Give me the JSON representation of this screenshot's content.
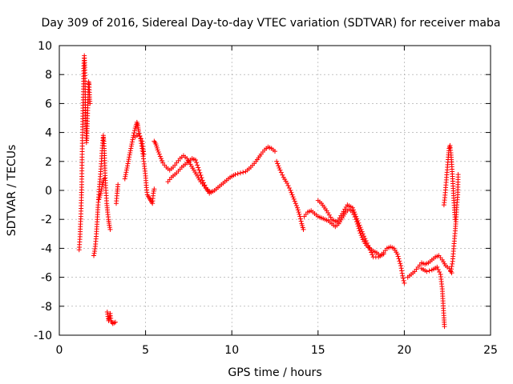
{
  "chart_data": {
    "type": "scatter",
    "title": "Day 309 of 2016, Sidereal Day-to-day VTEC variation (SDTVAR) for receiver maba",
    "xlabel": "GPS time / hours",
    "ylabel": "SDTVAR / TECUs",
    "xlim": [
      0,
      25
    ],
    "ylim": [
      -10,
      10
    ],
    "xticks": [
      0,
      5,
      10,
      15,
      20,
      25
    ],
    "xtick_labels": [
      "0",
      "5",
      "10",
      "15",
      "20",
      "25"
    ],
    "yticks": [
      -10,
      -8,
      -6,
      -4,
      -2,
      0,
      2,
      4,
      6,
      8,
      10
    ],
    "ytick_labels": [
      "-10",
      "-8",
      "-6",
      "-4",
      "-2",
      "0",
      "2",
      "4",
      "6",
      "8",
      "10"
    ],
    "grid": true,
    "marker": "+",
    "color": "#ff0000",
    "series": [
      {
        "name": "SDTVAR",
        "segments": [
          [
            [
              1.15,
              -4.1
            ],
            [
              1.2,
              -3.2
            ],
            [
              1.22,
              -2.5
            ],
            [
              1.25,
              -1.8
            ],
            [
              1.28,
              -0.5
            ],
            [
              1.3,
              0.4
            ],
            [
              1.32,
              2.3
            ],
            [
              1.35,
              4.2
            ],
            [
              1.37,
              5.5
            ],
            [
              1.4,
              7.0
            ],
            [
              1.42,
              8.6
            ],
            [
              1.45,
              9.3
            ],
            [
              1.48,
              8.5
            ],
            [
              1.5,
              6.8
            ],
            [
              1.52,
              5.2
            ],
            [
              1.55,
              4.1
            ],
            [
              1.57,
              3.3
            ],
            [
              1.6,
              3.6
            ],
            [
              1.62,
              4.6
            ],
            [
              1.65,
              5.7
            ],
            [
              1.68,
              6.8
            ],
            [
              1.7,
              7.5
            ],
            [
              1.73,
              7.3
            ],
            [
              1.75,
              6.6
            ],
            [
              1.78,
              6.0
            ]
          ],
          [
            [
              2.0,
              -4.5
            ],
            [
              2.05,
              -4.2
            ],
            [
              2.1,
              -3.7
            ],
            [
              2.15,
              -3.0
            ],
            [
              2.2,
              -2.0
            ],
            [
              2.25,
              -1.0
            ],
            [
              2.3,
              -0.1
            ],
            [
              2.35,
              0.6
            ],
            [
              2.4,
              1.3
            ],
            [
              2.45,
              2.2
            ],
            [
              2.5,
              3.1
            ],
            [
              2.55,
              3.8
            ],
            [
              2.58,
              3.4
            ],
            [
              2.62,
              2.4
            ],
            [
              2.65,
              1.2
            ],
            [
              2.7,
              0.0
            ],
            [
              2.75,
              -0.9
            ],
            [
              2.8,
              -1.5
            ],
            [
              2.85,
              -2.0
            ],
            [
              2.9,
              -2.4
            ],
            [
              2.95,
              -2.7
            ]
          ],
          [
            [
              2.3,
              -0.6
            ],
            [
              2.4,
              -0.2
            ],
            [
              2.5,
              0.4
            ],
            [
              2.6,
              0.8
            ]
          ],
          [
            [
              2.78,
              -8.4
            ],
            [
              2.82,
              -8.7
            ],
            [
              2.86,
              -9.0
            ],
            [
              2.9,
              -8.8
            ],
            [
              2.95,
              -8.5
            ],
            [
              3.0,
              -9.0
            ],
            [
              3.1,
              -9.2
            ],
            [
              3.25,
              -9.1
            ]
          ],
          [
            [
              3.3,
              -0.9
            ],
            [
              3.35,
              -0.2
            ],
            [
              3.4,
              0.4
            ]
          ],
          [
            [
              3.8,
              0.8
            ],
            [
              3.9,
              1.4
            ],
            [
              4.0,
              2.0
            ],
            [
              4.1,
              2.6
            ],
            [
              4.2,
              3.2
            ],
            [
              4.3,
              3.8
            ],
            [
              4.4,
              4.3
            ],
            [
              4.5,
              4.7
            ],
            [
              4.55,
              4.5
            ],
            [
              4.6,
              4.1
            ],
            [
              4.7,
              3.6
            ],
            [
              4.8,
              2.9
            ],
            [
              4.9,
              2.0
            ],
            [
              5.0,
              1.0
            ],
            [
              5.05,
              0.2
            ],
            [
              5.1,
              -0.3
            ],
            [
              5.2,
              -0.5
            ],
            [
              5.3,
              -0.7
            ],
            [
              5.4,
              -0.9
            ],
            [
              5.45,
              -0.2
            ],
            [
              5.5,
              0.1
            ]
          ],
          [
            [
              4.4,
              3.7
            ],
            [
              4.6,
              3.9
            ],
            [
              4.8,
              3.4
            ],
            [
              4.9,
              2.5
            ]
          ],
          [
            [
              5.5,
              3.4
            ],
            [
              5.6,
              3.2
            ],
            [
              5.7,
              2.8
            ],
            [
              5.8,
              2.5
            ],
            [
              5.9,
              2.2
            ],
            [
              6.0,
              1.9
            ],
            [
              6.2,
              1.6
            ],
            [
              6.4,
              1.4
            ],
            [
              6.6,
              1.6
            ],
            [
              6.8,
              1.9
            ],
            [
              7.0,
              2.2
            ],
            [
              7.2,
              2.4
            ],
            [
              7.4,
              2.2
            ],
            [
              7.6,
              1.8
            ],
            [
              7.8,
              1.4
            ],
            [
              8.0,
              1.0
            ],
            [
              8.2,
              0.6
            ],
            [
              8.4,
              0.3
            ],
            [
              8.6,
              0.0
            ],
            [
              8.8,
              -0.1
            ]
          ],
          [
            [
              6.3,
              0.6
            ],
            [
              6.5,
              0.9
            ],
            [
              6.8,
              1.2
            ],
            [
              7.1,
              1.6
            ],
            [
              7.4,
              1.9
            ],
            [
              7.7,
              2.2
            ],
            [
              7.9,
              2.1
            ],
            [
              8.1,
              1.4
            ],
            [
              8.3,
              0.7
            ],
            [
              8.5,
              0.2
            ],
            [
              8.7,
              -0.2
            ],
            [
              9.0,
              0.0
            ],
            [
              9.3,
              0.3
            ],
            [
              9.6,
              0.6
            ],
            [
              9.9,
              0.9
            ],
            [
              10.2,
              1.1
            ],
            [
              10.5,
              1.2
            ],
            [
              10.8,
              1.3
            ],
            [
              11.1,
              1.6
            ],
            [
              11.4,
              2.0
            ],
            [
              11.7,
              2.5
            ],
            [
              11.9,
              2.8
            ],
            [
              12.1,
              3.0
            ],
            [
              12.3,
              2.9
            ],
            [
              12.5,
              2.7
            ]
          ],
          [
            [
              12.6,
              2.0
            ],
            [
              12.8,
              1.4
            ],
            [
              13.0,
              0.9
            ],
            [
              13.2,
              0.5
            ],
            [
              13.4,
              0.0
            ],
            [
              13.6,
              -0.6
            ],
            [
              13.8,
              -1.2
            ],
            [
              13.95,
              -1.8
            ],
            [
              14.05,
              -2.3
            ],
            [
              14.15,
              -2.7
            ]
          ],
          [
            [
              14.2,
              -1.8
            ],
            [
              14.4,
              -1.5
            ],
            [
              14.6,
              -1.4
            ],
            [
              14.8,
              -1.6
            ],
            [
              15.0,
              -1.8
            ],
            [
              15.2,
              -1.9
            ],
            [
              15.4,
              -2.0
            ],
            [
              15.6,
              -2.1
            ],
            [
              15.8,
              -2.3
            ],
            [
              16.0,
              -2.5
            ],
            [
              16.2,
              -2.3
            ],
            [
              16.4,
              -1.9
            ],
            [
              16.6,
              -1.5
            ],
            [
              16.8,
              -1.3
            ],
            [
              17.0,
              -1.5
            ],
            [
              17.2,
              -2.0
            ],
            [
              17.4,
              -2.8
            ],
            [
              17.6,
              -3.4
            ],
            [
              17.8,
              -3.8
            ],
            [
              18.0,
              -4.0
            ],
            [
              18.2,
              -4.2
            ],
            [
              18.4,
              -4.3
            ],
            [
              18.6,
              -4.5
            ],
            [
              18.8,
              -4.3
            ],
            [
              19.0,
              -4.0
            ],
            [
              19.2,
              -3.9
            ],
            [
              19.4,
              -4.0
            ],
            [
              19.6,
              -4.4
            ],
            [
              19.8,
              -5.2
            ],
            [
              19.9,
              -5.9
            ],
            [
              20.0,
              -6.4
            ]
          ],
          [
            [
              15.0,
              -0.7
            ],
            [
              15.2,
              -0.9
            ],
            [
              15.5,
              -1.4
            ],
            [
              15.8,
              -2.0
            ],
            [
              16.1,
              -2.2
            ],
            [
              16.4,
              -1.6
            ],
            [
              16.7,
              -1.0
            ],
            [
              17.0,
              -1.2
            ],
            [
              17.3,
              -2.1
            ],
            [
              17.6,
              -3.0
            ],
            [
              17.9,
              -3.8
            ],
            [
              18.2,
              -4.6
            ],
            [
              18.5,
              -4.6
            ],
            [
              18.8,
              -4.4
            ]
          ],
          [
            [
              20.2,
              -6.0
            ],
            [
              20.4,
              -5.8
            ],
            [
              20.6,
              -5.6
            ],
            [
              20.8,
              -5.3
            ],
            [
              21.0,
              -5.0
            ],
            [
              21.2,
              -5.1
            ],
            [
              21.4,
              -5.0
            ],
            [
              21.6,
              -4.8
            ],
            [
              21.8,
              -4.6
            ],
            [
              22.0,
              -4.5
            ],
            [
              22.2,
              -4.8
            ],
            [
              22.4,
              -5.2
            ],
            [
              22.6,
              -5.4
            ],
            [
              22.75,
              -5.7
            ]
          ],
          [
            [
              21.0,
              -5.4
            ],
            [
              21.3,
              -5.6
            ],
            [
              21.6,
              -5.5
            ],
            [
              21.9,
              -5.3
            ],
            [
              22.1,
              -5.8
            ],
            [
              22.2,
              -6.8
            ],
            [
              22.25,
              -7.8
            ],
            [
              22.3,
              -8.8
            ],
            [
              22.33,
              -9.4
            ]
          ],
          [
            [
              22.3,
              -1.0
            ],
            [
              22.35,
              -0.5
            ],
            [
              22.4,
              0.2
            ],
            [
              22.45,
              0.9
            ],
            [
              22.5,
              1.6
            ],
            [
              22.55,
              2.3
            ],
            [
              22.6,
              2.9
            ],
            [
              22.65,
              3.1
            ],
            [
              22.7,
              2.6
            ],
            [
              22.75,
              1.8
            ],
            [
              22.8,
              0.8
            ],
            [
              22.85,
              -0.2
            ],
            [
              22.9,
              -1.2
            ],
            [
              22.95,
              -2.0
            ]
          ],
          [
            [
              22.7,
              -5.6
            ],
            [
              22.8,
              -4.9
            ],
            [
              22.85,
              -4.2
            ],
            [
              22.9,
              -3.5
            ],
            [
              22.95,
              -2.8
            ],
            [
              23.0,
              -2.0
            ],
            [
              23.05,
              -1.0
            ],
            [
              23.1,
              -0.3
            ],
            [
              23.12,
              1.1
            ]
          ]
        ]
      }
    ]
  }
}
